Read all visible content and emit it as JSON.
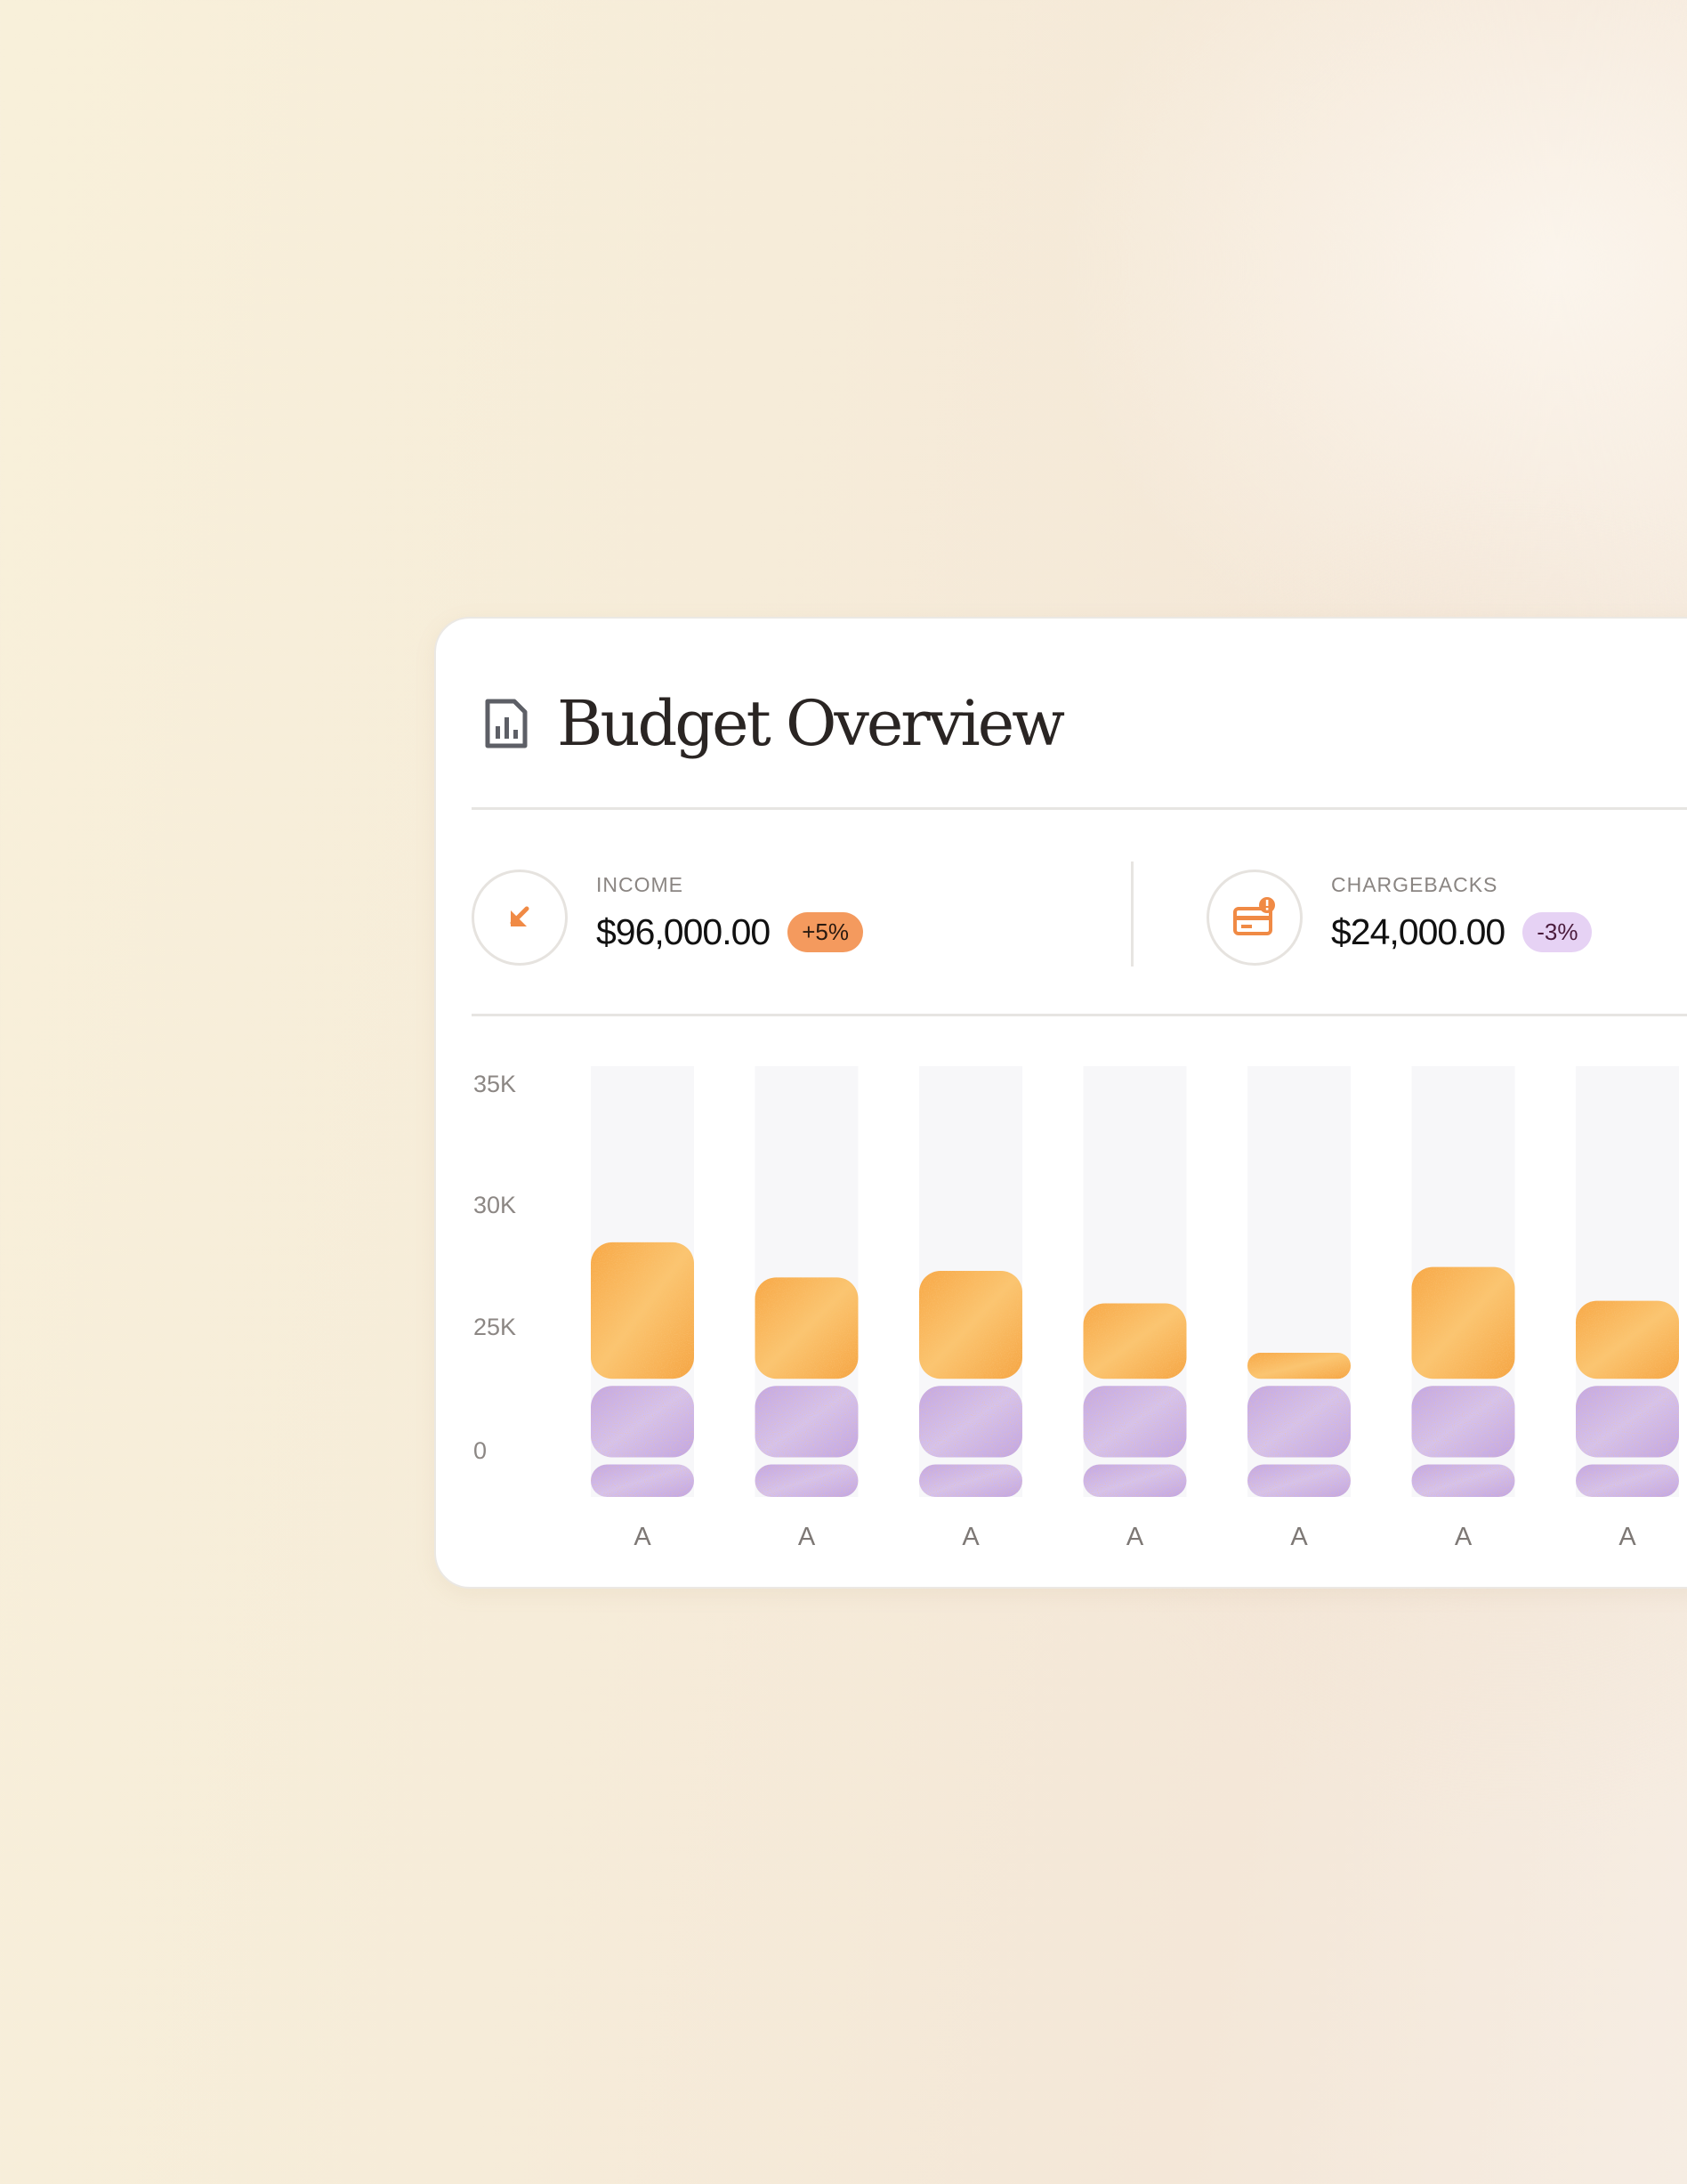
{
  "card": {
    "title": "Budget Overview",
    "icon": "report-chart-icon"
  },
  "stats": {
    "income": {
      "label": "INCOME",
      "value": "$96,000.00",
      "change": "+5%",
      "icon": "arrow-down-left-icon",
      "color": "#f08a45"
    },
    "chargebacks": {
      "label": "CHARGEBACKS",
      "value": "$24,000.00",
      "change": "-3%",
      "icon": "credit-card-alert-icon",
      "color": "#f08a45"
    }
  },
  "colors": {
    "orange": "#f8b65a",
    "purple": "#c8b2ea",
    "track": "#f7f7f9"
  },
  "chart_data": {
    "type": "bar",
    "stacked": true,
    "y_ticks": [
      "35K",
      "30K",
      "25K",
      "0"
    ],
    "categories": [
      "A",
      "A",
      "A",
      "A",
      "A",
      "A",
      "A"
    ],
    "series": [
      {
        "values": [
          2.5,
          2.5,
          2.5,
          2.5,
          2.5,
          2.5,
          2.5
        ]
      },
      {
        "values": [
          5.5,
          5.5,
          5.5,
          5.5,
          5.5,
          5.5,
          5.5
        ]
      },
      {
        "values": [
          10.5,
          7.8,
          8.3,
          5.8,
          2.0,
          8.6,
          6.0
        ]
      }
    ],
    "ylim": [
      0,
      35
    ],
    "grid": false,
    "legend": "none"
  }
}
